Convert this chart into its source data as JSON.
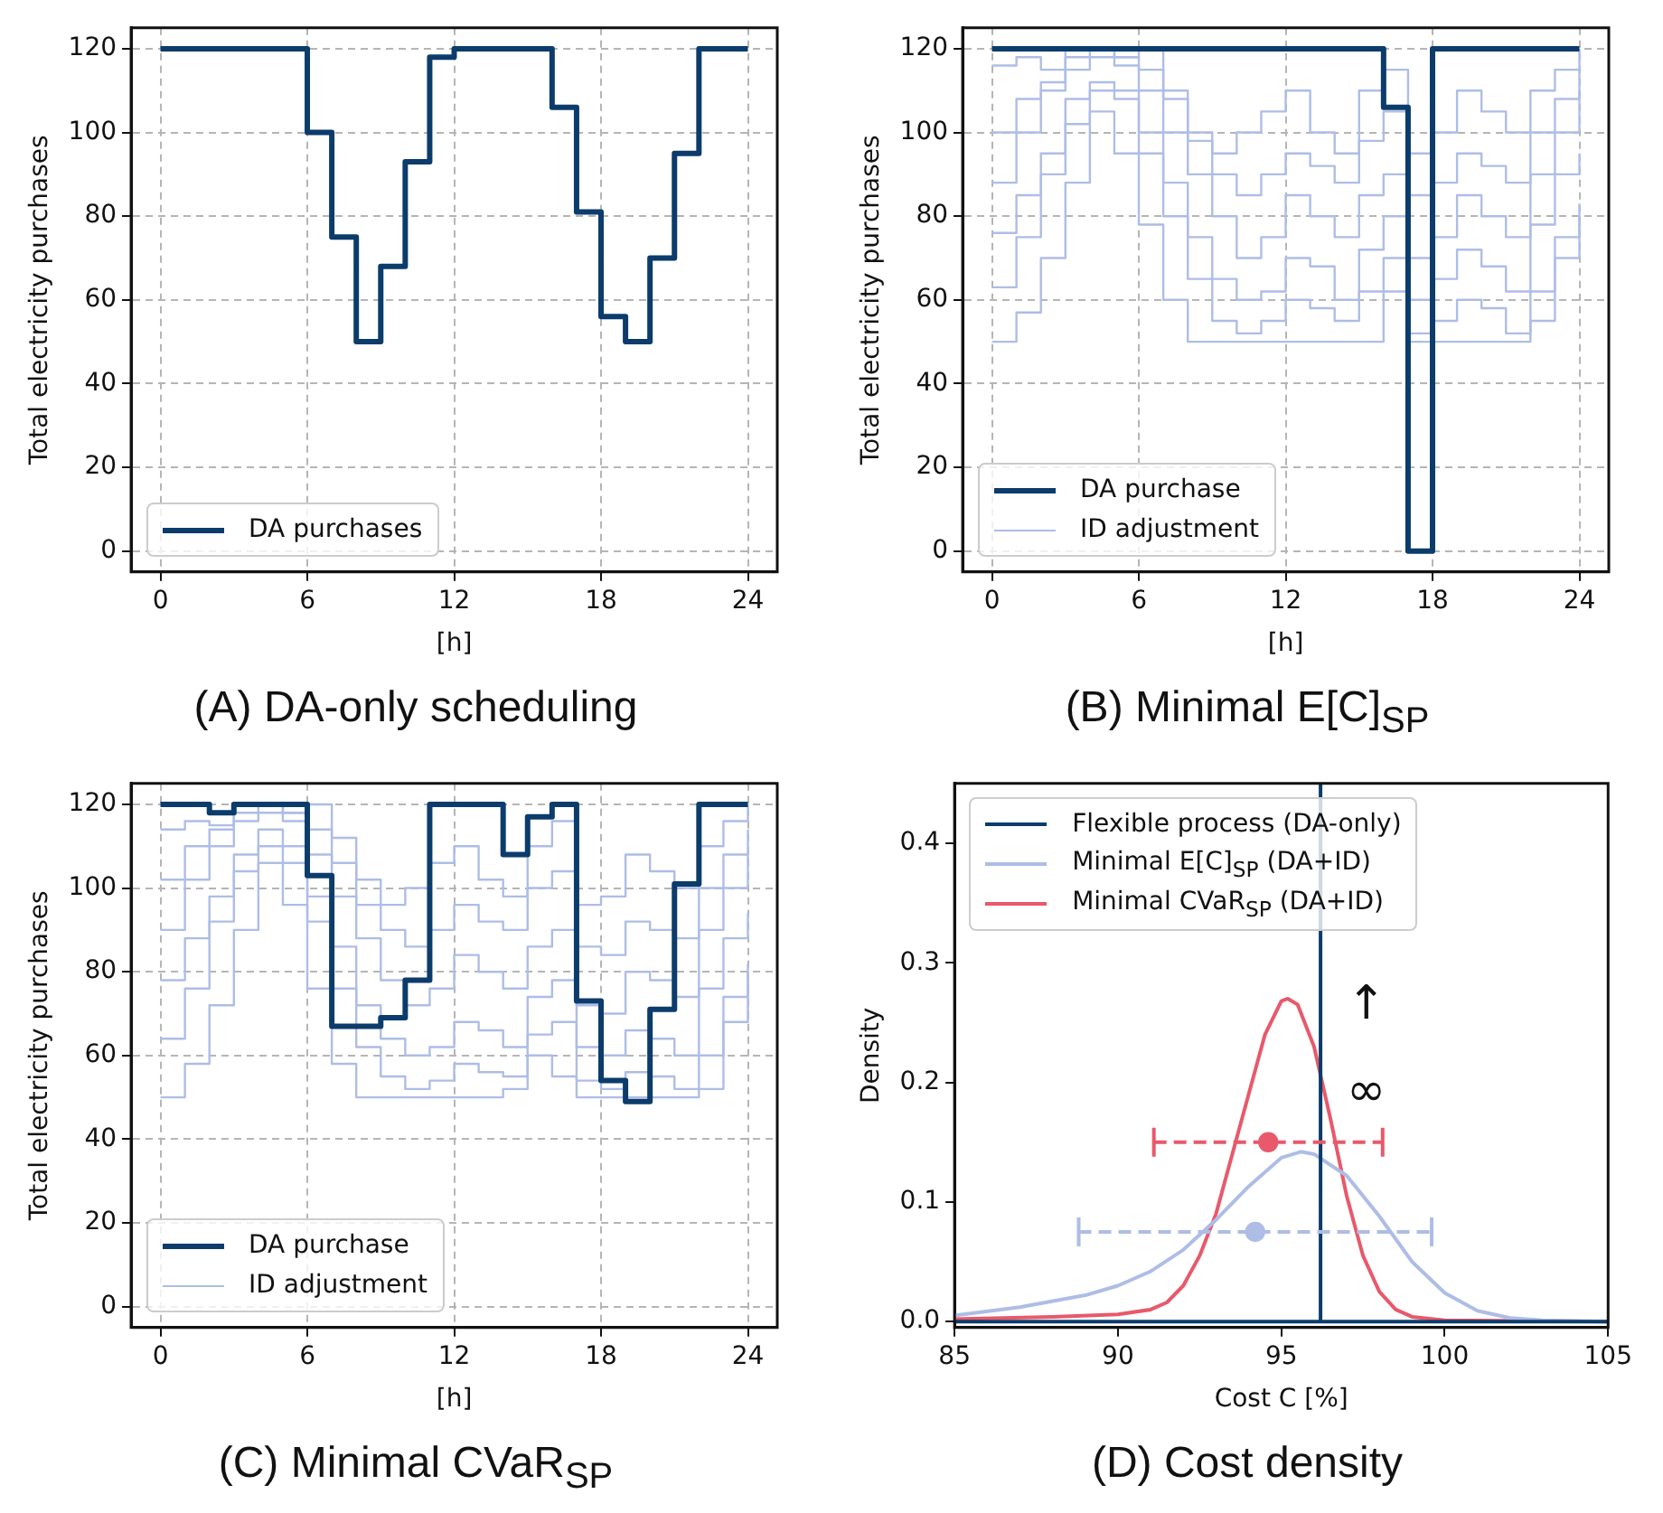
{
  "chart_data": [
    {
      "type": "step",
      "title": "(A) DA-only scheduling",
      "xlabel": "[h]",
      "ylabel": "Total electricity purchases",
      "x": [
        0,
        1,
        2,
        3,
        4,
        5,
        6,
        7,
        8,
        9,
        10,
        11,
        12,
        13,
        14,
        15,
        16,
        17,
        18,
        19,
        20,
        21,
        22,
        23,
        24
      ],
      "xlim": [
        -1.2,
        25.2
      ],
      "ylim": [
        -5,
        125
      ],
      "xticks": [
        0,
        6,
        12,
        18,
        24
      ],
      "yticks": [
        0,
        20,
        40,
        60,
        80,
        100,
        120
      ],
      "grid": true,
      "legend": "bottom left",
      "series": [
        {
          "name": "DA purchases",
          "color": "#0b3c6b",
          "values": [
            120,
            120,
            120,
            120,
            120,
            120,
            100,
            75,
            50,
            68,
            93,
            118,
            120,
            120,
            120,
            120,
            106,
            81,
            56,
            50,
            70,
            95,
            120,
            120,
            120
          ]
        }
      ]
    },
    {
      "type": "step",
      "title": "(B) Minimal E[C]$_{SP}$",
      "xlabel": "[h]",
      "ylabel": "Total electricity purchases",
      "x": [
        0,
        1,
        2,
        3,
        4,
        5,
        6,
        7,
        8,
        9,
        10,
        11,
        12,
        13,
        14,
        15,
        16,
        17,
        18,
        19,
        20,
        21,
        22,
        23,
        24
      ],
      "xlim": [
        -1.2,
        25.2
      ],
      "ylim": [
        -5,
        125
      ],
      "xticks": [
        0,
        6,
        12,
        18,
        24
      ],
      "yticks": [
        0,
        20,
        40,
        60,
        80,
        100,
        120
      ],
      "grid": true,
      "legend": "bottom left",
      "series": [
        {
          "name": "DA purchase",
          "color": "#0b3c6b",
          "values": [
            120,
            120,
            120,
            120,
            120,
            120,
            120,
            120,
            120,
            120,
            120,
            120,
            120,
            120,
            120,
            120,
            106,
            0,
            120,
            120,
            120,
            120,
            120,
            120,
            120
          ]
        },
        {
          "name": "ID adjustment",
          "color": "#aebde6",
          "values": [
            50,
            57,
            70,
            88,
            105,
            95,
            78,
            60,
            50,
            50,
            50,
            50,
            50,
            50,
            50,
            50,
            62,
            50,
            50,
            50,
            50,
            50,
            55,
            70,
            83
          ]
        },
        {
          "color": "#aebde6",
          "values": [
            63,
            75,
            90,
            102,
            110,
            108,
            95,
            80,
            65,
            55,
            52,
            55,
            60,
            58,
            55,
            62,
            70,
            52,
            55,
            60,
            58,
            52,
            62,
            75,
            80
          ]
        },
        {
          "color": "#aebde6",
          "values": [
            76,
            85,
            95,
            108,
            112,
            110,
            100,
            88,
            75,
            65,
            60,
            62,
            70,
            68,
            60,
            72,
            80,
            60,
            65,
            72,
            68,
            62,
            78,
            90,
            95
          ]
        },
        {
          "color": "#aebde6",
          "values": [
            88,
            100,
            110,
            115,
            118,
            116,
            110,
            100,
            90,
            80,
            70,
            75,
            85,
            80,
            75,
            85,
            90,
            70,
            75,
            85,
            80,
            75,
            90,
            100,
            110
          ]
        },
        {
          "color": "#aebde6",
          "values": [
            100,
            108,
            112,
            118,
            120,
            118,
            115,
            108,
            98,
            90,
            85,
            90,
            95,
            92,
            88,
            98,
            105,
            85,
            88,
            95,
            92,
            88,
            100,
            108,
            115
          ]
        },
        {
          "color": "#aebde6",
          "values": [
            116,
            118,
            115,
            120,
            120,
            118,
            120,
            110,
            100,
            95,
            100,
            105,
            110,
            100,
            95,
            110,
            115,
            95,
            100,
            110,
            105,
            100,
            110,
            115,
            120
          ]
        }
      ]
    },
    {
      "type": "step",
      "title": "(C) Minimal CVaR$_{SP}$",
      "xlabel": "[h]",
      "ylabel": "Total electricity purchases",
      "x": [
        0,
        1,
        2,
        3,
        4,
        5,
        6,
        7,
        8,
        9,
        10,
        11,
        12,
        13,
        14,
        15,
        16,
        17,
        18,
        19,
        20,
        21,
        22,
        23,
        24
      ],
      "xlim": [
        -1.2,
        25.2
      ],
      "ylim": [
        -5,
        125
      ],
      "xticks": [
        0,
        6,
        12,
        18,
        24
      ],
      "yticks": [
        0,
        20,
        40,
        60,
        80,
        100,
        120
      ],
      "grid": true,
      "legend": "bottom left",
      "series": [
        {
          "name": "DA purchase",
          "color": "#0b3c6b",
          "values": [
            120,
            120,
            118,
            120,
            120,
            120,
            103,
            67,
            67,
            69,
            78,
            120,
            120,
            120,
            108,
            117,
            120,
            73,
            54,
            49,
            71,
            101,
            120,
            120,
            120
          ]
        },
        {
          "name": "ID adjustment",
          "color": "#aebde6",
          "values": [
            50,
            58,
            72,
            90,
            106,
            96,
            76,
            58,
            50,
            50,
            50,
            50,
            50,
            50,
            52,
            60,
            55,
            50,
            50,
            50,
            50,
            50,
            52,
            68,
            82
          ]
        },
        {
          "color": "#aebde6",
          "values": [
            64,
            76,
            92,
            104,
            110,
            106,
            92,
            76,
            62,
            55,
            52,
            54,
            58,
            56,
            55,
            65,
            68,
            54,
            52,
            56,
            55,
            52,
            60,
            74,
            80
          ]
        },
        {
          "color": "#aebde6",
          "values": [
            78,
            88,
            98,
            108,
            114,
            110,
            98,
            86,
            72,
            64,
            60,
            62,
            68,
            66,
            62,
            74,
            78,
            62,
            60,
            66,
            64,
            60,
            76,
            88,
            94
          ]
        },
        {
          "color": "#aebde6",
          "values": [
            90,
            102,
            110,
            116,
            118,
            116,
            108,
            98,
            88,
            78,
            72,
            76,
            84,
            80,
            76,
            86,
            90,
            72,
            70,
            80,
            78,
            74,
            90,
            100,
            108
          ]
        },
        {
          "color": "#aebde6",
          "values": [
            102,
            110,
            114,
            118,
            120,
            118,
            114,
            106,
            96,
            90,
            86,
            90,
            96,
            92,
            90,
            100,
            104,
            86,
            84,
            92,
            90,
            88,
            100,
            108,
            114
          ]
        },
        {
          "color": "#aebde6",
          "values": [
            114,
            116,
            115,
            120,
            120,
            118,
            120,
            112,
            102,
            96,
            100,
            106,
            110,
            102,
            98,
            110,
            116,
            96,
            98,
            108,
            104,
            100,
            110,
            116,
            120
          ]
        }
      ]
    },
    {
      "type": "line",
      "title": "(D) Cost density",
      "xlabel": "Cost C [%]",
      "ylabel": "Density",
      "xlim": [
        85,
        105
      ],
      "ylim": [
        -0.005,
        0.45
      ],
      "xticks": [
        85,
        90,
        95,
        100,
        105
      ],
      "yticks": [
        {
          "value": 0,
          "label": "0.0"
        },
        {
          "value": 0.1,
          "label": "0.1"
        },
        {
          "value": 0.2,
          "label": "0.2"
        },
        {
          "value": 0.3,
          "label": "0.3"
        },
        {
          "value": 0.4,
          "label": "0.4"
        }
      ],
      "legend": "top left",
      "annotations": [
        "↑",
        "∞"
      ],
      "series": [
        {
          "name": "Flexible process (DA-only)",
          "color": "#0b3c6b",
          "x": [
            85,
            96.2,
            96.2,
            96.2,
            105
          ],
          "values": [
            0,
            0,
            0.45,
            0,
            0
          ]
        },
        {
          "name": "Minimal E[C]$_{SP}$ (DA+ID)",
          "color": "#aebde6",
          "x": [
            85,
            87,
            89,
            90,
            91,
            92,
            93,
            94,
            95,
            95.6,
            96,
            97,
            98,
            99,
            100,
            101,
            102,
            103,
            105
          ],
          "values": [
            0.005,
            0.012,
            0.022,
            0.03,
            0.042,
            0.06,
            0.085,
            0.113,
            0.137,
            0.142,
            0.14,
            0.122,
            0.088,
            0.05,
            0.024,
            0.009,
            0.003,
            0.001,
            0
          ]
        },
        {
          "name": "Minimal CVaR$_{SP}$ (DA+ID)",
          "color": "#e8596b",
          "x": [
            85,
            88,
            90,
            91,
            91.5,
            92,
            92.5,
            93,
            93.5,
            94,
            94.5,
            95,
            95.2,
            95.5,
            96,
            96.5,
            97,
            97.5,
            98,
            98.5,
            99,
            100,
            105
          ],
          "values": [
            0.002,
            0.004,
            0.006,
            0.01,
            0.016,
            0.03,
            0.055,
            0.09,
            0.14,
            0.19,
            0.24,
            0.268,
            0.27,
            0.265,
            0.23,
            0.17,
            0.105,
            0.055,
            0.025,
            0.01,
            0.004,
            0.001,
            0
          ]
        },
        {
          "type": "scatter",
          "color": "#e8596b",
          "marker": "circle",
          "line_style": "dashed",
          "x": [
            94.6
          ],
          "values": [
            0.15
          ],
          "xerrors": [
            [
              91.1,
              98.1
            ]
          ]
        },
        {
          "type": "scatter",
          "color": "#aebde6",
          "marker": "circle",
          "line_style": "dashed",
          "x": [
            94.2
          ],
          "values": [
            0.075
          ],
          "xerrors": [
            [
              88.8,
              99.6
            ]
          ]
        }
      ]
    }
  ]
}
